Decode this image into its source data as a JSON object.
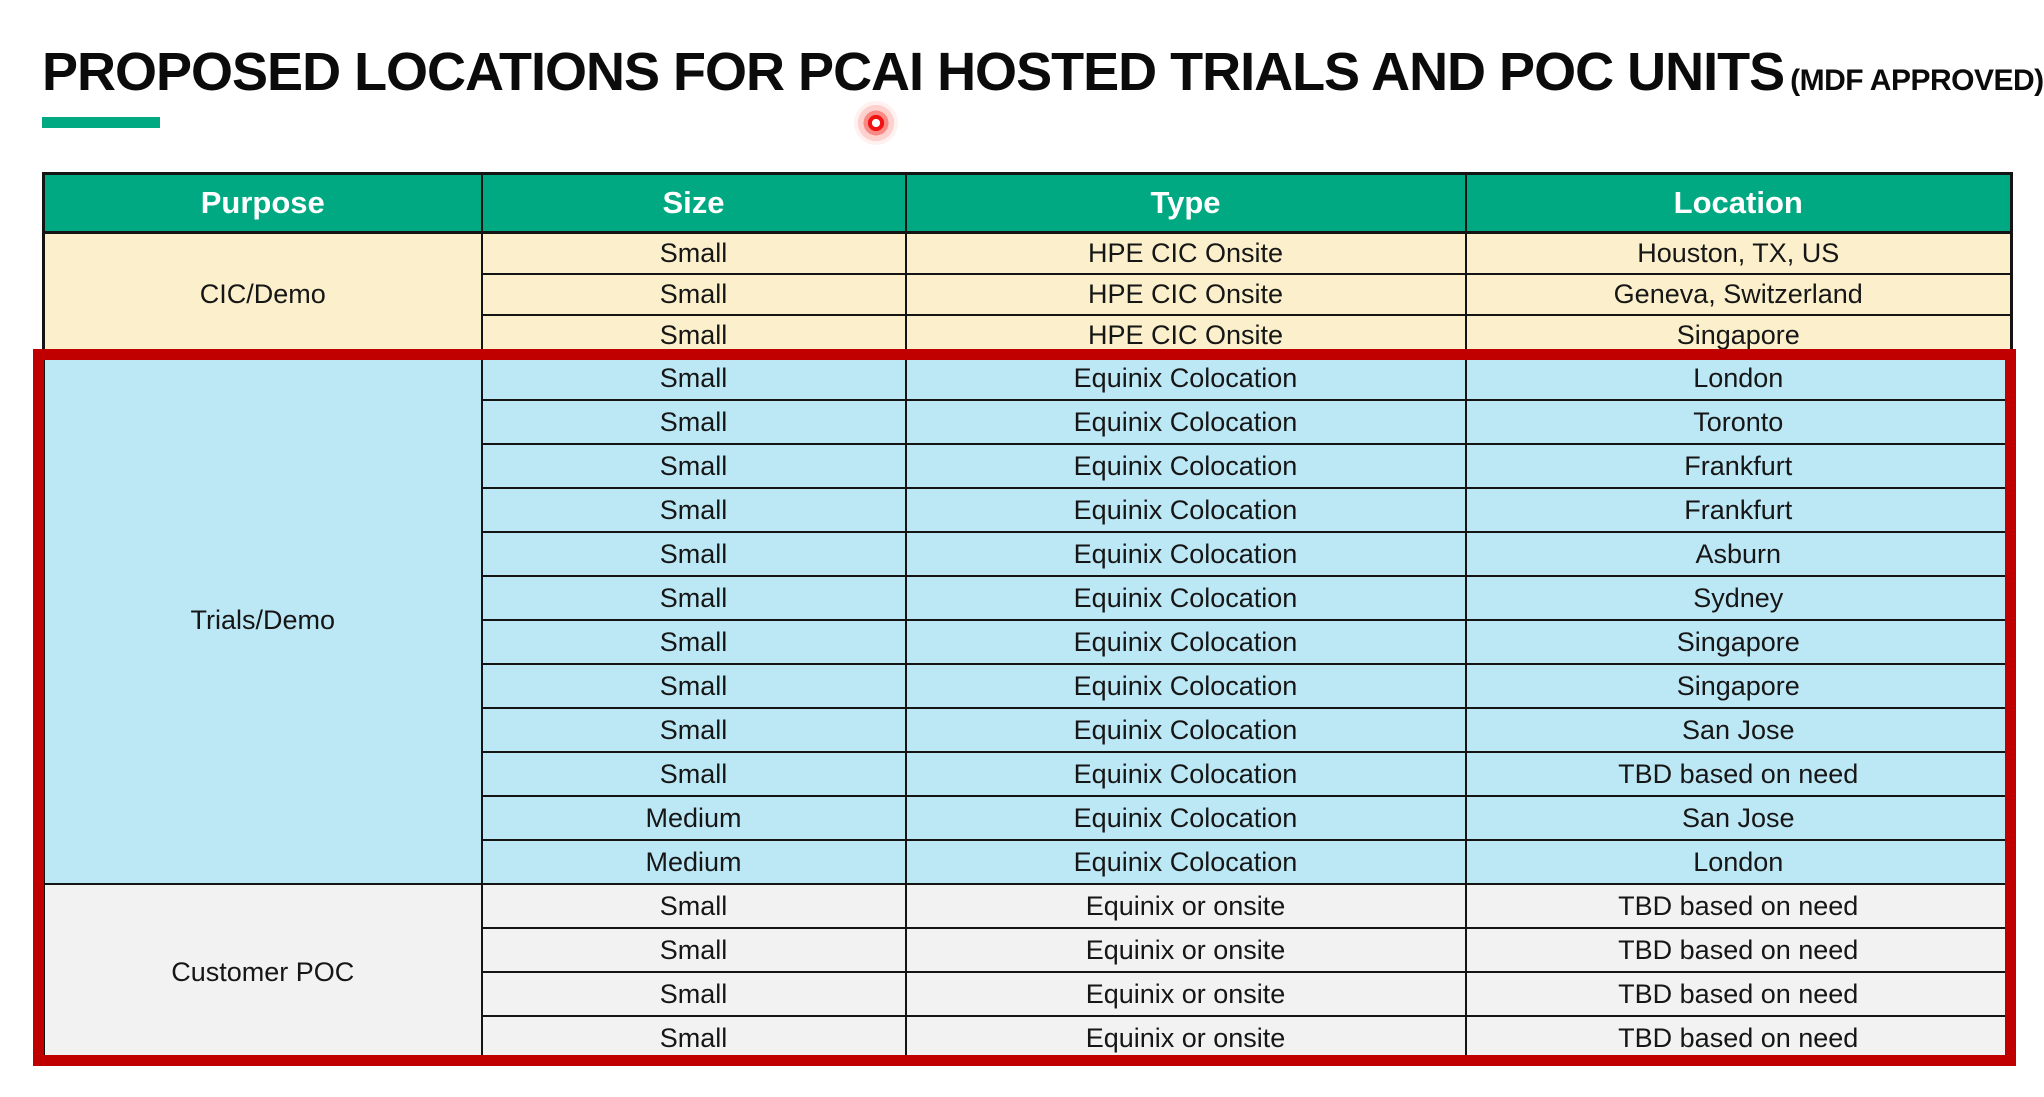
{
  "page": {
    "title": "PROPOSED LOCATIONS FOR PCAI HOSTED TRIALS AND POC UNITS",
    "title_suffix": "(MDF APPROVED)",
    "accent_color": "#01A982",
    "highlight_border_color": "#C00000",
    "laser_pointer_color": "#F21212"
  },
  "table": {
    "columns": [
      "Purpose",
      "Size",
      "Type",
      "Location"
    ],
    "header_bg": "#01A982",
    "header_text_color": "#FFFFFF",
    "sections": [
      {
        "purpose": "CIC/Demo",
        "bg": "#FBF0CB",
        "highlighted": false,
        "rows": [
          {
            "size": "Small",
            "type": "HPE CIC Onsite",
            "location": "Houston, TX, US"
          },
          {
            "size": "Small",
            "type": "HPE CIC Onsite",
            "location": "Geneva, Switzerland"
          },
          {
            "size": "Small",
            "type": "HPE CIC Onsite",
            "location": "Singapore"
          }
        ]
      },
      {
        "purpose": "Trials/Demo",
        "bg": "#BCE7F5",
        "highlighted": true,
        "rows": [
          {
            "size": "Small",
            "type": "Equinix Colocation",
            "location": "London"
          },
          {
            "size": "Small",
            "type": "Equinix Colocation",
            "location": "Toronto"
          },
          {
            "size": "Small",
            "type": "Equinix Colocation",
            "location": "Frankfurt"
          },
          {
            "size": "Small",
            "type": "Equinix Colocation",
            "location": "Frankfurt"
          },
          {
            "size": "Small",
            "type": "Equinix Colocation",
            "location": "Asburn"
          },
          {
            "size": "Small",
            "type": "Equinix Colocation",
            "location": "Sydney"
          },
          {
            "size": "Small",
            "type": "Equinix Colocation",
            "location": "Singapore"
          },
          {
            "size": "Small",
            "type": "Equinix Colocation",
            "location": "Singapore"
          },
          {
            "size": "Small",
            "type": "Equinix Colocation",
            "location": "San Jose"
          },
          {
            "size": "Small",
            "type": "Equinix Colocation",
            "location": "TBD based on need"
          },
          {
            "size": "Medium",
            "type": "Equinix Colocation",
            "location": "San Jose"
          },
          {
            "size": "Medium",
            "type": "Equinix Colocation",
            "location": "London"
          }
        ]
      },
      {
        "purpose": "Customer POC",
        "bg": "#F2F2F2",
        "highlighted": true,
        "rows": [
          {
            "size": "Small",
            "type": "Equinix or onsite",
            "location": "TBD based on need"
          },
          {
            "size": "Small",
            "type": "Equinix or onsite",
            "location": "TBD based on need"
          },
          {
            "size": "Small",
            "type": "Equinix or onsite",
            "location": "TBD based on need"
          },
          {
            "size": "Small",
            "type": "Equinix or onsite",
            "location": "TBD based on need"
          }
        ]
      }
    ]
  }
}
